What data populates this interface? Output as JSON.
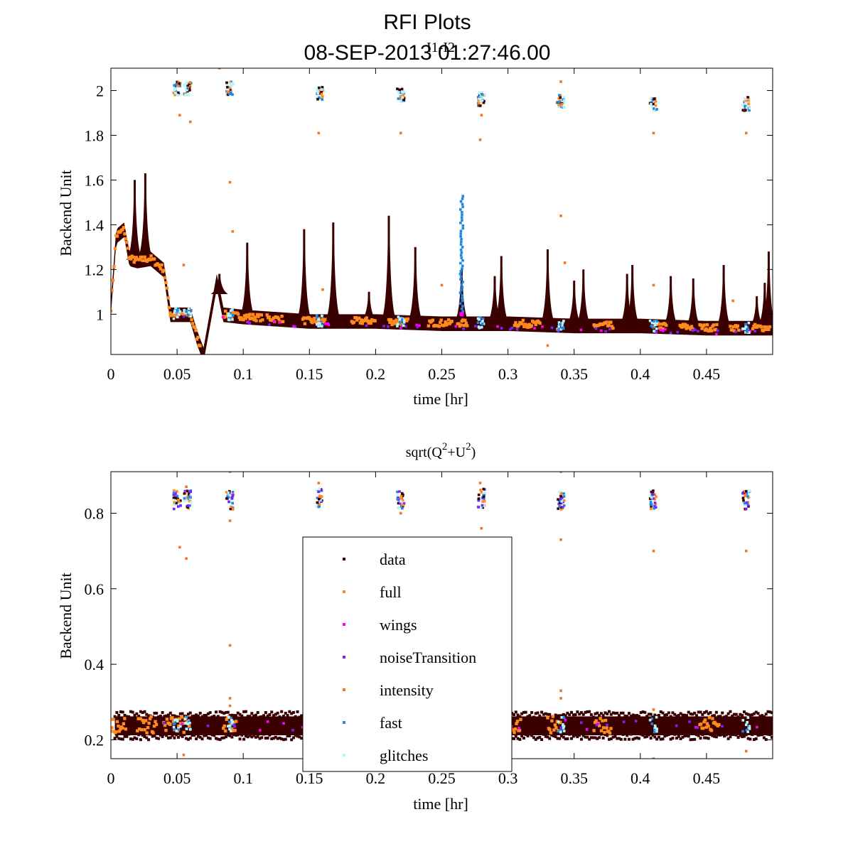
{
  "figure": {
    "title": "RFI Plots",
    "subtitle": "08-SEP-2013 01:27:46.00"
  },
  "colors": {
    "data": "#3a0000",
    "full": "#ff8a1e",
    "wings": "#ff00ff",
    "noiseTransition": "#7a22ff",
    "intensity": "#f07820",
    "fast": "#1e88e5",
    "glitches": "#b8f4ff"
  },
  "chart_data": [
    {
      "type": "scatter",
      "title": "I1-I2",
      "xlabel": "time [hr]",
      "ylabel": "Backend Unit",
      "xlim": [
        0,
        0.5
      ],
      "ylim": [
        0.82,
        2.1
      ],
      "xticks": [
        0,
        0.05,
        0.1,
        0.15,
        0.2,
        0.25,
        0.3,
        0.35,
        0.4,
        0.45
      ],
      "xtick_labels": [
        "0",
        "0.05",
        "0.1",
        "0.15",
        "0.2",
        "0.25",
        "0.3",
        "0.35",
        "0.4",
        "0.45"
      ],
      "yticks": [
        1,
        1.2,
        1.4,
        1.6,
        1.8,
        2
      ],
      "ytick_labels": [
        "1",
        "1.2",
        "1.4",
        "1.6",
        "1.8",
        "2"
      ],
      "baseline": [
        [
          0,
          1.03
        ],
        [
          0.004,
          1.35
        ],
        [
          0.01,
          1.38
        ],
        [
          0.014,
          1.25
        ],
        [
          0.02,
          1.24
        ],
        [
          0.03,
          1.25
        ],
        [
          0.04,
          1.2
        ],
        [
          0.045,
          1.0
        ],
        [
          0.06,
          1.0
        ],
        [
          0.065,
          0.9
        ],
        [
          0.07,
          0.82
        ],
        [
          0.08,
          1.15
        ],
        [
          0.085,
          1.0
        ],
        [
          0.1,
          0.99
        ],
        [
          0.15,
          0.97
        ],
        [
          0.2,
          0.97
        ],
        [
          0.25,
          0.96
        ],
        [
          0.3,
          0.96
        ],
        [
          0.35,
          0.95
        ],
        [
          0.4,
          0.95
        ],
        [
          0.45,
          0.94
        ],
        [
          0.5,
          0.94
        ]
      ],
      "spikes": [
        [
          0.018,
          1.6
        ],
        [
          0.026,
          1.63
        ],
        [
          0.082,
          1.18
        ],
        [
          0.103,
          1.32
        ],
        [
          0.146,
          1.38
        ],
        [
          0.168,
          1.41
        ],
        [
          0.195,
          1.1
        ],
        [
          0.21,
          1.44
        ],
        [
          0.23,
          1.3
        ],
        [
          0.265,
          1.2
        ],
        [
          0.29,
          1.17
        ],
        [
          0.295,
          1.26
        ],
        [
          0.33,
          1.29
        ],
        [
          0.35,
          1.15
        ],
        [
          0.357,
          1.2
        ],
        [
          0.39,
          1.18
        ],
        [
          0.394,
          1.22
        ],
        [
          0.423,
          1.17
        ],
        [
          0.44,
          1.16
        ],
        [
          0.463,
          1.22
        ],
        [
          0.488,
          1.08
        ],
        [
          0.494,
          1.14
        ],
        [
          0.497,
          1.28
        ]
      ],
      "glitch_clusters": [
        [
          0.05,
          2.01
        ],
        [
          0.058,
          2.01
        ],
        [
          0.09,
          2.01
        ],
        [
          0.158,
          1.99
        ],
        [
          0.219,
          1.98
        ],
        [
          0.28,
          1.96
        ],
        [
          0.34,
          1.95
        ],
        [
          0.41,
          1.94
        ],
        [
          0.48,
          1.94
        ]
      ],
      "fast_burst": {
        "x": 0.265,
        "y_min": 1.0,
        "y_max": 1.53
      },
      "outliers": [
        [
          0.052,
          1.89
        ],
        [
          0.06,
          1.86
        ],
        [
          0.09,
          1.59
        ],
        [
          0.092,
          1.37
        ],
        [
          0.157,
          1.81
        ],
        [
          0.219,
          1.81
        ],
        [
          0.279,
          1.78
        ],
        [
          0.28,
          1.89
        ],
        [
          0.34,
          1.44
        ],
        [
          0.343,
          1.23
        ],
        [
          0.41,
          1.81
        ],
        [
          0.41,
          1.13
        ],
        [
          0.48,
          1.81
        ],
        [
          0.082,
          2.1
        ],
        [
          0.34,
          2.04
        ],
        [
          0.055,
          1.22
        ],
        [
          0.16,
          1.11
        ],
        [
          0.25,
          1.13
        ],
        [
          0.33,
          0.86
        ],
        [
          0.47,
          1.06
        ]
      ]
    },
    {
      "type": "scatter",
      "title_base": "sqrt(Q",
      "title_mid": "+U",
      "title_end": ")",
      "title_sup": "2",
      "xlabel": "time [hr]",
      "ylabel": "Backend Unit",
      "xlim": [
        0,
        0.5
      ],
      "ylim": [
        0.15,
        0.91
      ],
      "xticks": [
        0,
        0.05,
        0.1,
        0.15,
        0.2,
        0.25,
        0.3,
        0.35,
        0.4,
        0.45
      ],
      "xtick_labels": [
        "0",
        "0.05",
        "0.1",
        "0.15",
        "0.2",
        "0.25",
        "0.3",
        "0.35",
        "0.4",
        "0.45"
      ],
      "yticks": [
        0.2,
        0.4,
        0.6,
        0.8
      ],
      "ytick_labels": [
        "0.2",
        "0.4",
        "0.6",
        "0.8"
      ],
      "baseline_level": 0.24,
      "glitch_clusters": [
        [
          0.05,
          0.835
        ],
        [
          0.058,
          0.835
        ],
        [
          0.09,
          0.835
        ],
        [
          0.158,
          0.84
        ],
        [
          0.219,
          0.835
        ],
        [
          0.28,
          0.84
        ],
        [
          0.34,
          0.835
        ],
        [
          0.41,
          0.835
        ],
        [
          0.48,
          0.835
        ]
      ],
      "outliers": [
        [
          0.052,
          0.71
        ],
        [
          0.057,
          0.68
        ],
        [
          0.09,
          0.45
        ],
        [
          0.09,
          0.78
        ],
        [
          0.09,
          0.31
        ],
        [
          0.09,
          0.29
        ],
        [
          0.157,
          0.88
        ],
        [
          0.219,
          0.8
        ],
        [
          0.28,
          0.76
        ],
        [
          0.279,
          0.88
        ],
        [
          0.34,
          0.91
        ],
        [
          0.34,
          0.73
        ],
        [
          0.34,
          0.33
        ],
        [
          0.34,
          0.31
        ],
        [
          0.41,
          0.7
        ],
        [
          0.41,
          0.28
        ],
        [
          0.48,
          0.7
        ],
        [
          0.055,
          0.16
        ],
        [
          0.41,
          0.15
        ],
        [
          0.48,
          0.17
        ],
        [
          0.09,
          0.91
        ],
        [
          0.057,
          0.87
        ]
      ]
    }
  ],
  "legend": {
    "entries": [
      {
        "label": "data",
        "color": "#3a0000"
      },
      {
        "label": "full",
        "color": "#ff8a1e"
      },
      {
        "label": "wings",
        "color": "#ff00ff"
      },
      {
        "label": "noiseTransition",
        "color": "#7a22ff"
      },
      {
        "label": "intensity",
        "color": "#f07820"
      },
      {
        "label": "fast",
        "color": "#1e88e5"
      },
      {
        "label": "glitches",
        "color": "#b8f4ff"
      }
    ]
  }
}
